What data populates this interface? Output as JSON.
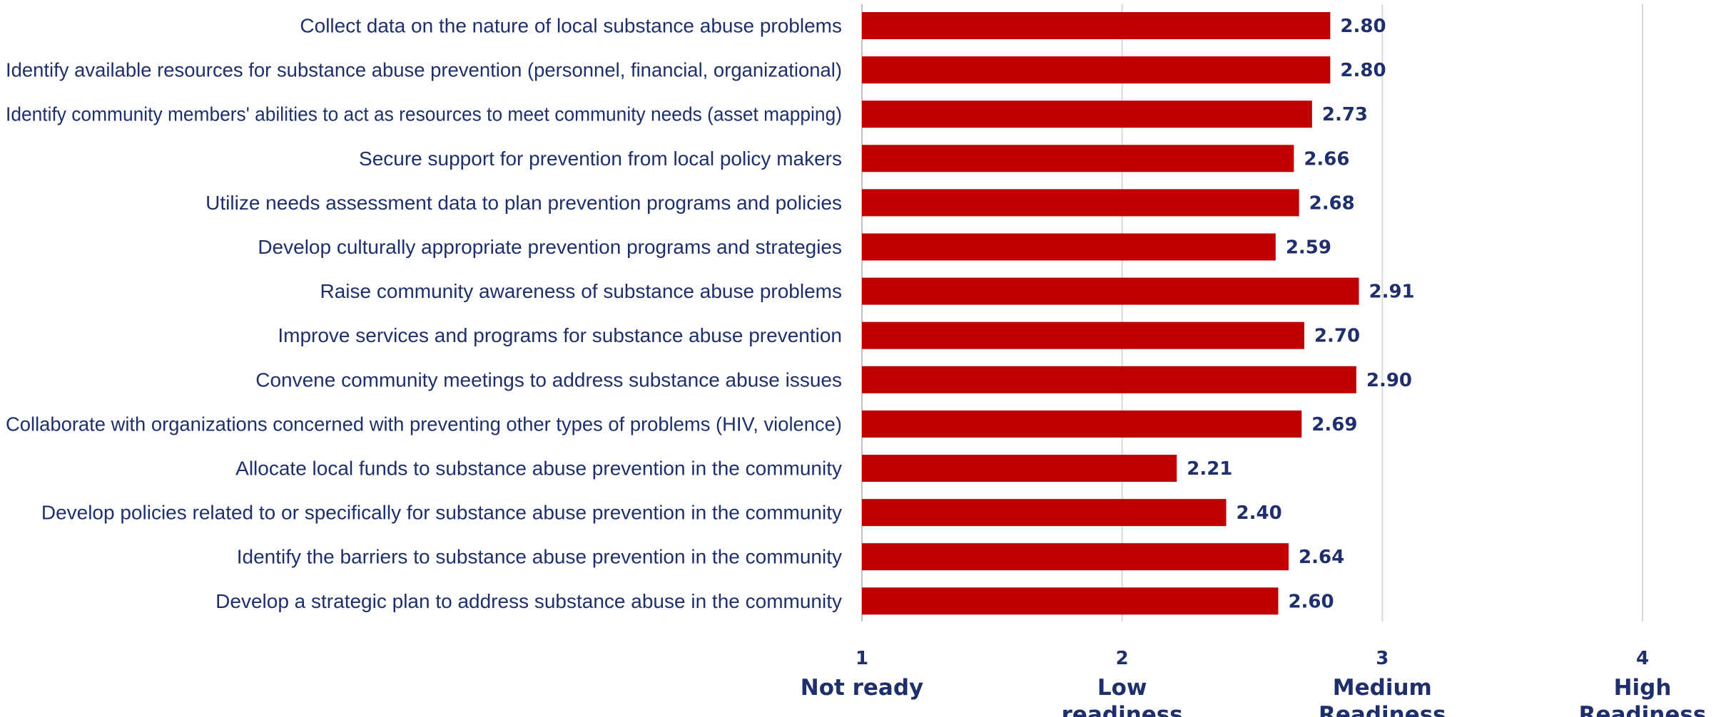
{
  "chart_data": {
    "type": "bar",
    "orientation": "horizontal",
    "categories": [
      "Collect data on the nature of local substance abuse problems",
      "Identify available resources for substance abuse prevention (personnel, financial, organizational)",
      "Identify community members' abilities to act as resources to meet community needs (asset mapping)",
      "Secure support for prevention from local policy makers",
      "Utilize needs assessment data to plan prevention programs and policies",
      "Develop culturally appropriate prevention programs and strategies",
      "Raise community awareness of substance abuse problems",
      "Improve services and programs for substance abuse prevention",
      "Convene community meetings to address substance abuse issues",
      "Collaborate with organizations concerned with preventing other types of problems (HIV, violence)",
      "Allocate local funds to substance abuse prevention in the community",
      "Develop policies related to or specifically for substance abuse prevention in the community",
      "Identify the barriers to substance abuse prevention in the community",
      "Develop a strategic plan to address substance abuse in the community"
    ],
    "values": [
      2.8,
      2.8,
      2.73,
      2.66,
      2.68,
      2.59,
      2.91,
      2.7,
      2.9,
      2.69,
      2.21,
      2.4,
      2.64,
      2.6
    ],
    "value_labels": [
      "2.80",
      "2.80",
      "2.73",
      "2.66",
      "2.68",
      "2.59",
      "2.91",
      "2.70",
      "2.90",
      "2.69",
      "2.21",
      "2.40",
      "2.64",
      "2.60"
    ],
    "xlim": [
      1,
      4
    ],
    "ticks": [
      {
        "value": 1,
        "label": "1",
        "text": [
          "Not ready"
        ]
      },
      {
        "value": 2,
        "label": "2",
        "text": [
          "Low",
          "readiness"
        ]
      },
      {
        "value": 3,
        "label": "3",
        "text": [
          "Medium",
          "Readiness"
        ]
      },
      {
        "value": 4,
        "label": "4",
        "text": [
          "High",
          "Readiness"
        ]
      }
    ],
    "grid": true,
    "legend": "none",
    "colors": {
      "bar": "#c00000",
      "text": "#1f2f6b",
      "grid": "#d9d9d9"
    }
  }
}
